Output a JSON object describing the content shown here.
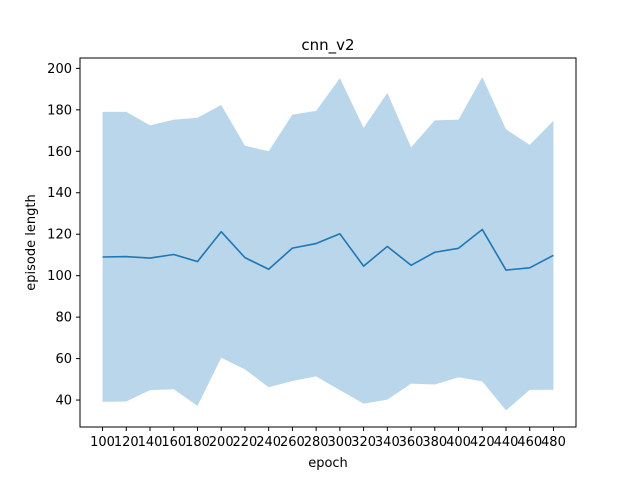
{
  "chart_data": {
    "type": "line",
    "title": "cnn_v2",
    "xlabel": "epoch",
    "ylabel": "episode length",
    "x": [
      100,
      120,
      140,
      160,
      180,
      200,
      220,
      240,
      260,
      280,
      300,
      320,
      340,
      360,
      380,
      400,
      420,
      440,
      460,
      480
    ],
    "x_tick_labels": [
      "100",
      "120",
      "140",
      "160",
      "180",
      "200",
      "220",
      "240",
      "260",
      "280",
      "300",
      "320",
      "340",
      "360",
      "380",
      "400",
      "420",
      "440",
      "460",
      "480"
    ],
    "y_ticks": [
      40,
      60,
      80,
      100,
      120,
      140,
      160,
      180,
      200
    ],
    "y_tick_labels": [
      "40",
      "60",
      "80",
      "100",
      "120",
      "140",
      "160",
      "180",
      "200"
    ],
    "ylim": [
      27,
      205
    ],
    "grid": false,
    "series": [
      {
        "values": [
          109,
          109.2,
          108.5,
          110.2,
          106.8,
          121.2,
          108.7,
          103.1,
          113.3,
          115.5,
          120.2,
          104.6,
          114.1,
          105,
          111.3,
          113.2,
          122.3,
          102.7,
          103.8,
          109.8
        ],
        "band_upper": [
          179,
          179,
          172.5,
          175.2,
          176.2,
          182.3,
          162.7,
          160,
          177.7,
          179.5,
          195.3,
          171.3,
          188.2,
          161.9,
          174.9,
          175.3,
          195.8,
          170.6,
          163.1,
          174.7
        ],
        "band_lower": [
          39.1,
          39.3,
          44.8,
          45.2,
          37.2,
          60.4,
          54.8,
          46.2,
          49.2,
          51.4,
          44.8,
          38.3,
          40.2,
          47.9,
          47.5,
          51,
          49,
          35,
          44.9,
          45
        ],
        "color": "#1f77b4",
        "band_color": "#bad6ea"
      }
    ]
  }
}
